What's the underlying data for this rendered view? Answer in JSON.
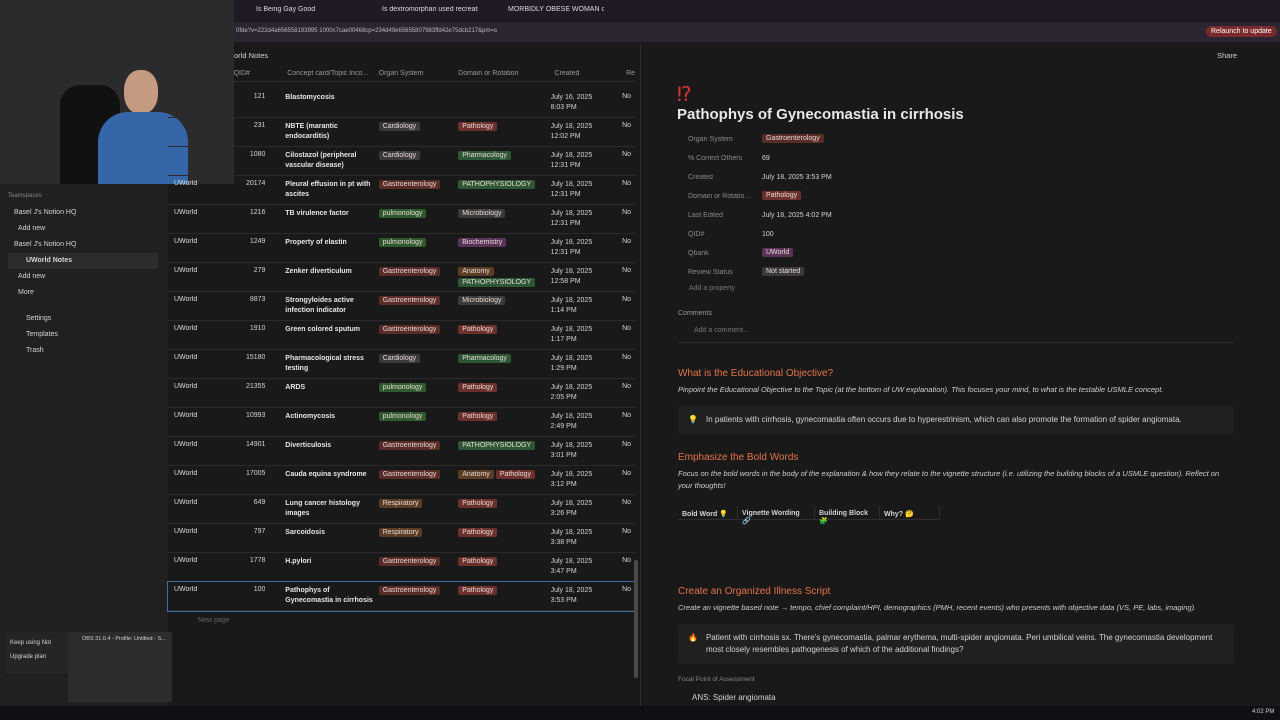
{
  "browser": {
    "tabs": [
      "Is Being Gay Good",
      "Is dextromorphan used recreati",
      "MORBIDLY OBESE WOMAN ca"
    ],
    "url": "0fde?v=222d4a656558193995 1000c7cae00468cp=234d49e65655807983ffd42e75dcb217&pm=s",
    "relaunch": "Relaunch to update"
  },
  "sidebar": {
    "section": "Teamspaces",
    "items": [
      "Basel J's Notion HQ",
      "Add new",
      "Basel J's Notion HQ",
      "UWorld Notes",
      "Add new",
      "More"
    ],
    "footer": [
      "Settings",
      "Templates",
      "Trash"
    ],
    "popup": [
      "Keep using Not",
      "Upgrade plan"
    ],
    "obs": "OBS 31.0.4 - Profile: Untitled - S..."
  },
  "database": {
    "breadcrumb": "orld Notes",
    "headers": [
      "QID#",
      "Concept card/Topic Inco...",
      "Organ System",
      "Domain or Rotation",
      "Created",
      "Re"
    ],
    "new_page": "New page",
    "rows": [
      {
        "qid": "121",
        "concept": "Blastomycosis",
        "organ": [],
        "domain": [],
        "date": "July 16, 2025",
        "time": "8:03 PM",
        "review": "No"
      },
      {
        "qid": "231",
        "concept": "NBTE (marantic endocarditis)",
        "organ": [
          {
            "text": "Cardiology",
            "color": "#3a3a3a"
          }
        ],
        "domain": [
          {
            "text": "Pathology",
            "color": "#6b302c"
          }
        ],
        "date": "July 18, 2025",
        "time": "12:02 PM",
        "review": "No"
      },
      {
        "qid": "1080",
        "concept": "Cilostazol (peripheral vascular disease)",
        "organ": [
          {
            "text": "Cardiology",
            "color": "#3a3a3a"
          }
        ],
        "domain": [
          {
            "text": "Pharmacology",
            "color": "#2d5634"
          }
        ],
        "date": "July 18, 2025",
        "time": "12:31 PM",
        "review": "No"
      },
      {
        "qbank": "UWorld",
        "qid": "20174",
        "concept": "Pleural effusion in pt with ascites",
        "organ": [
          {
            "text": "Gastroenterology",
            "color": "#5a2c28"
          }
        ],
        "domain": [
          {
            "text": "PATHOPHYSIOLOGY",
            "color": "#2d5634"
          }
        ],
        "date": "July 18, 2025",
        "time": "12:31 PM",
        "review": "No"
      },
      {
        "qbank": "UWorld",
        "qid": "1216",
        "concept": "TB virulence factor",
        "organ": [
          {
            "text": "pulmonology",
            "color": "#2e5a2e"
          }
        ],
        "domain": [
          {
            "text": "Microbiology",
            "color": "#3a3a3a"
          }
        ],
        "date": "July 18, 2025",
        "time": "12:31 PM",
        "review": "No"
      },
      {
        "qbank": "UWorld",
        "qid": "1249",
        "concept": "Property of elastin",
        "organ": [
          {
            "text": "pulmonology",
            "color": "#2e5a2e"
          }
        ],
        "domain": [
          {
            "text": "Biochemistry",
            "color": "#5a3458"
          }
        ],
        "date": "July 18, 2025",
        "time": "12:31 PM",
        "review": "No"
      },
      {
        "qbank": "UWorld",
        "qid": "279",
        "concept": "Zenker diverticulum",
        "organ": [
          {
            "text": "Gastroenterology",
            "color": "#5a2c28"
          }
        ],
        "domain": [
          {
            "text": "Anatomy",
            "color": "#5a3d24"
          },
          {
            "text": "PATHOPHYSIOLOGY",
            "color": "#2d5634"
          }
        ],
        "date": "July 18, 2025",
        "time": "12:58 PM",
        "review": "No"
      },
      {
        "qbank": "UWorld",
        "qid": "8873",
        "concept": "Strongyloides active infection indicator",
        "organ": [
          {
            "text": "Gastroenterology",
            "color": "#5a2c28"
          }
        ],
        "domain": [
          {
            "text": "Microbiology",
            "color": "#3a3a3a"
          }
        ],
        "date": "July 18, 2025",
        "time": "1:14 PM",
        "review": "No"
      },
      {
        "qbank": "UWorld",
        "qid": "1910",
        "concept": "Green colored sputum",
        "organ": [
          {
            "text": "Gastroenterology",
            "color": "#5a2c28"
          }
        ],
        "domain": [
          {
            "text": "Pathology",
            "color": "#6b302c"
          }
        ],
        "date": "July 18, 2025",
        "time": "1:17 PM",
        "review": "No"
      },
      {
        "qbank": "UWorld",
        "qid": "15180",
        "concept": "Pharmacological stress testing",
        "organ": [
          {
            "text": "Cardiology",
            "color": "#3a3a3a"
          }
        ],
        "domain": [
          {
            "text": "Pharmacology",
            "color": "#2d5634"
          }
        ],
        "date": "July 18, 2025",
        "time": "1:29 PM",
        "review": "No"
      },
      {
        "qbank": "UWorld",
        "qid": "21355",
        "concept": "ARDS",
        "organ": [
          {
            "text": "pulmonology",
            "color": "#2e5a2e"
          }
        ],
        "domain": [
          {
            "text": "Pathology",
            "color": "#6b302c"
          }
        ],
        "date": "July 18, 2025",
        "time": "2:05 PM",
        "review": "No"
      },
      {
        "qbank": "UWorld",
        "qid": "10993",
        "concept": "Actinomycosis",
        "organ": [
          {
            "text": "pulmonology",
            "color": "#2e5a2e"
          }
        ],
        "domain": [
          {
            "text": "Pathology",
            "color": "#6b302c"
          }
        ],
        "date": "July 18, 2025",
        "time": "2:49 PM",
        "review": "No"
      },
      {
        "qbank": "UWorld",
        "qid": "14901",
        "concept": "Diverticulosis",
        "organ": [
          {
            "text": "Gastroenterology",
            "color": "#5a2c28"
          }
        ],
        "domain": [
          {
            "text": "PATHOPHYSIOLOGY",
            "color": "#2d5634"
          }
        ],
        "date": "July 18, 2025",
        "time": "3:01 PM",
        "review": "No"
      },
      {
        "qbank": "UWorld",
        "qid": "17005",
        "concept": "Cauda equina syndrome",
        "organ": [
          {
            "text": "Gastroenterology",
            "color": "#5a2c28"
          }
        ],
        "domain": [
          {
            "text": "Anatomy",
            "color": "#5a3d24"
          },
          {
            "text": "Pathology",
            "color": "#6b302c"
          }
        ],
        "date": "July 18, 2025",
        "time": "3:12 PM",
        "review": "No"
      },
      {
        "qbank": "UWorld",
        "qid": "649",
        "concept": "Lung cancer histology images",
        "organ": [
          {
            "text": "Respiratory",
            "color": "#5a3d24"
          }
        ],
        "domain": [
          {
            "text": "Pathology",
            "color": "#6b302c"
          }
        ],
        "date": "July 18, 2025",
        "time": "3:26 PM",
        "review": "No"
      },
      {
        "qbank": "UWorld",
        "qid": "797",
        "concept": "Sarcoidosis",
        "organ": [
          {
            "text": "Respiratory",
            "color": "#5a3d24"
          }
        ],
        "domain": [
          {
            "text": "Pathology",
            "color": "#6b302c"
          }
        ],
        "date": "July 18, 2025",
        "time": "3:38 PM",
        "review": "No"
      },
      {
        "qbank": "UWorld",
        "qid": "1778",
        "concept": "H.pylori",
        "organ": [
          {
            "text": "Gastroenterology",
            "color": "#5a2c28"
          }
        ],
        "domain": [
          {
            "text": "Pathology",
            "color": "#6b302c"
          }
        ],
        "date": "July 18, 2025",
        "time": "3:47 PM",
        "review": "No"
      },
      {
        "qbank": "UWorld",
        "qid": "100",
        "concept": "Pathophys of Gynecomastia in cirrhosis",
        "organ": [
          {
            "text": "Gastroenterology",
            "color": "#5a2c28"
          }
        ],
        "domain": [
          {
            "text": "Pathology",
            "color": "#6b302c"
          }
        ],
        "date": "July 18, 2025",
        "time": "3:53 PM",
        "review": "No"
      }
    ]
  },
  "page": {
    "share": "Share",
    "icon": "⁉",
    "title": "Pathophys of Gynecomastia in cirrhosis",
    "properties": [
      {
        "name": "Organ System",
        "value": "Gastroenterology",
        "color": "#5a2c28"
      },
      {
        "name": "% Correct Others",
        "value": "69"
      },
      {
        "name": "Created",
        "value": "July 18, 2025 3:53 PM"
      },
      {
        "name": "Domain or Rotatio...",
        "value": "Pathology",
        "color": "#6b302c"
      },
      {
        "name": "Last Edited",
        "value": "July 18, 2025 4:02 PM"
      },
      {
        "name": "QID#",
        "value": "100"
      },
      {
        "name": "Qbank",
        "value": "UWorld",
        "color": "#5a3458"
      },
      {
        "name": "Review Status",
        "value": "Not started",
        "color": "#3a3a3a"
      }
    ],
    "add_property": "Add a property",
    "comments": "Comments",
    "add_comment": "Add a comment...",
    "sections": [
      {
        "heading": "What is the Educational Objective?",
        "prompt": "Pinpoint the Educational Objective to the Topic (at the bottom of UW explanation). This focuses your mind, to what is the testable USMLE concept.",
        "callout_icon": "💡",
        "callout": "In patients with cirrhosis, gynecomastia often occurs due to hyperestrinism, which can also promote the formation of spider angiomata."
      },
      {
        "heading": "Emphasize the Bold Words",
        "prompt": "Focus on the bold words in the body of the explanation & how they relate to the vignette structure (i.e. utilizing the building blocks of a USMLE question). Reflect on your thoughts!",
        "table": [
          "Bold Word 💡",
          "Vignette Wording 🔗",
          "Building Block 🧩",
          "Why? 🤔"
        ]
      },
      {
        "heading": "Create an Organized Illness Script",
        "prompt": "Create an vignette based note → tempo, chief complaint/HPI, demographics (PMH, recent events) who presents with objective data (VS, PE, labs, imaging).",
        "callout_icon": "🔥",
        "callout": "Patient with cirrhosis sx. There's gynecomastia, palmar erythema, multi-spider angiomata. Peri umbilical veins. The gynecomastia development most closely resembles pathogenesis of which of the additional findings?"
      }
    ],
    "focal": "Focal Point of Assessment",
    "answer": "ANS: Spider angiomata"
  },
  "taskbar": {
    "clock": "4:02 PM"
  }
}
